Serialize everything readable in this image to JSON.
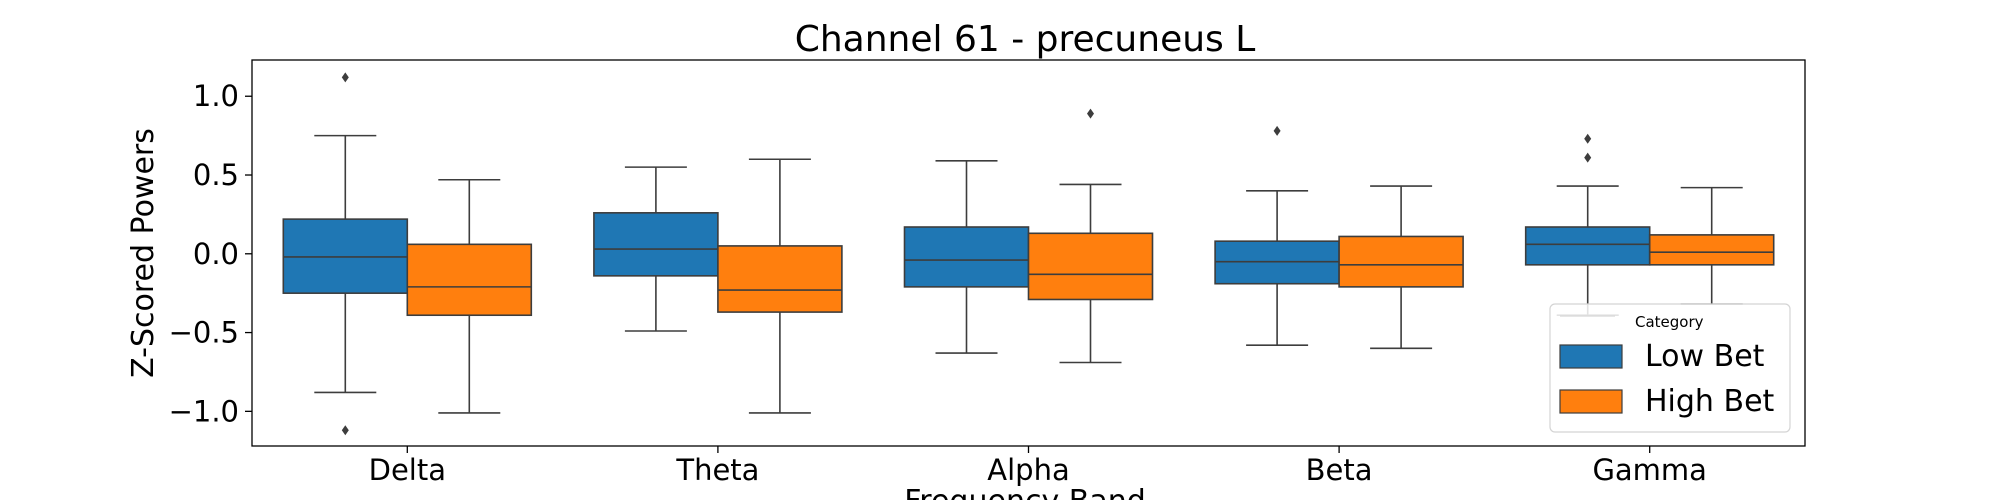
{
  "chart_data": {
    "type": "boxplot",
    "title": "Channel 61 - precuneus L",
    "xlabel": "Frequency Band",
    "ylabel": "Z-Scored Powers",
    "categories": [
      "Delta",
      "Theta",
      "Alpha",
      "Beta",
      "Gamma"
    ],
    "ylim": [
      -1.22,
      1.23
    ],
    "yticks": [
      1.0,
      0.5,
      0.0,
      -0.5,
      -1.0
    ],
    "ytick_labels": [
      "1.0",
      "0.5",
      "0.0",
      "−0.5",
      "−1.0"
    ],
    "grid": false,
    "legend": {
      "title": "Category",
      "placement": "lower-right"
    },
    "series": [
      {
        "name": "Low Bet",
        "color": "#1f77b4",
        "boxes": [
          {
            "whislo": -0.88,
            "q1": -0.25,
            "med": -0.02,
            "q3": 0.22,
            "whishi": 0.75,
            "fliers": [
              1.12,
              -1.12
            ]
          },
          {
            "whislo": -0.49,
            "q1": -0.14,
            "med": 0.03,
            "q3": 0.26,
            "whishi": 0.55,
            "fliers": []
          },
          {
            "whislo": -0.63,
            "q1": -0.21,
            "med": -0.04,
            "q3": 0.17,
            "whishi": 0.59,
            "fliers": []
          },
          {
            "whislo": -0.58,
            "q1": -0.19,
            "med": -0.05,
            "q3": 0.08,
            "whishi": 0.4,
            "fliers": [
              0.78
            ]
          },
          {
            "whislo": -0.39,
            "q1": -0.07,
            "med": 0.06,
            "q3": 0.17,
            "whishi": 0.43,
            "fliers": [
              0.73,
              0.61
            ]
          }
        ]
      },
      {
        "name": "High Bet",
        "color": "#ff7f0e",
        "boxes": [
          {
            "whislo": -1.01,
            "q1": -0.39,
            "med": -0.21,
            "q3": 0.06,
            "whishi": 0.47,
            "fliers": []
          },
          {
            "whislo": -1.01,
            "q1": -0.37,
            "med": -0.23,
            "q3": 0.05,
            "whishi": 0.6,
            "fliers": []
          },
          {
            "whislo": -0.69,
            "q1": -0.29,
            "med": -0.13,
            "q3": 0.13,
            "whishi": 0.44,
            "fliers": [
              0.89
            ]
          },
          {
            "whislo": -0.6,
            "q1": -0.21,
            "med": -0.07,
            "q3": 0.11,
            "whishi": 0.43,
            "fliers": []
          },
          {
            "whislo": -0.32,
            "q1": -0.07,
            "med": 0.01,
            "q3": 0.12,
            "whishi": 0.42,
            "fliers": []
          }
        ]
      }
    ]
  }
}
